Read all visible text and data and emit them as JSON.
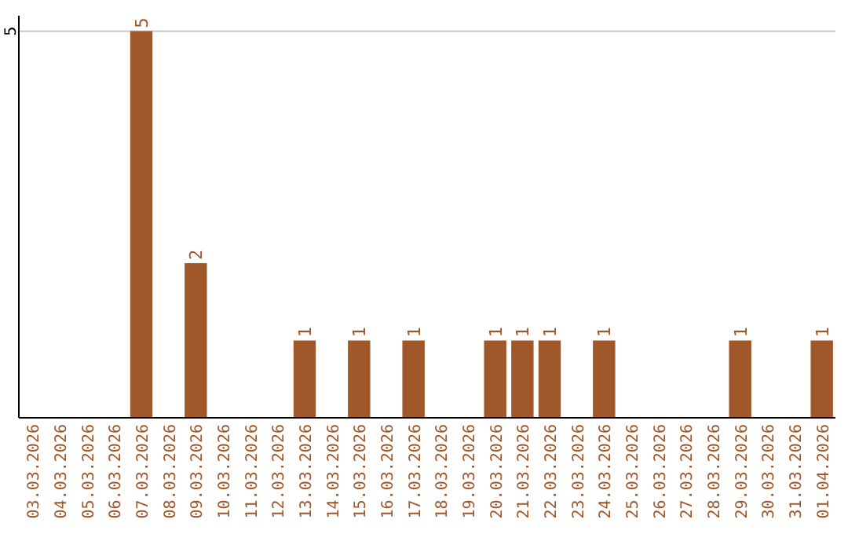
{
  "chart_data": {
    "type": "bar",
    "categories": [
      "03.03.2026",
      "04.03.2026",
      "05.03.2026",
      "06.03.2026",
      "07.03.2026",
      "08.03.2026",
      "09.03.2026",
      "10.03.2026",
      "11.03.2026",
      "12.03.2026",
      "13.03.2026",
      "14.03.2026",
      "15.03.2026",
      "16.03.2026",
      "17.03.2026",
      "18.03.2026",
      "19.03.2026",
      "20.03.2026",
      "21.03.2026",
      "22.03.2026",
      "23.03.2026",
      "24.03.2026",
      "25.03.2026",
      "26.03.2026",
      "27.03.2026",
      "28.03.2026",
      "29.03.2026",
      "30.03.2026",
      "31.03.2026",
      "01.04.2026"
    ],
    "values": [
      0,
      0,
      0,
      0,
      5,
      0,
      2,
      0,
      0,
      0,
      1,
      0,
      1,
      0,
      1,
      0,
      0,
      1,
      1,
      1,
      0,
      1,
      0,
      0,
      0,
      0,
      1,
      0,
      0,
      1
    ],
    "value_labels": [
      null,
      null,
      null,
      null,
      "5",
      null,
      "2",
      null,
      null,
      null,
      "1",
      null,
      "1",
      null,
      "1",
      null,
      null,
      "1",
      "1",
      "1",
      null,
      "1",
      null,
      null,
      null,
      null,
      "1",
      null,
      null,
      "1"
    ],
    "color": "#a0582a",
    "ylim": [
      0,
      5.2
    ],
    "yticks": [
      5
    ],
    "grid": "y"
  }
}
